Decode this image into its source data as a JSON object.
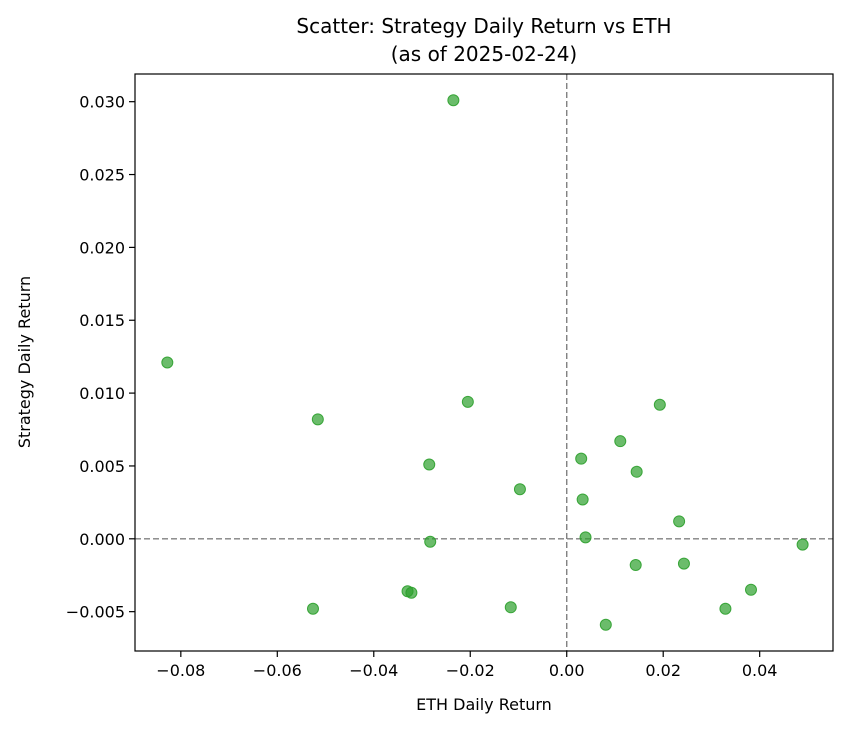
{
  "chart_data": {
    "type": "scatter",
    "title": "Scatter: Strategy Daily Return vs ETH",
    "subtitle": "(as of 2025-02-24)",
    "xlabel": "ETH Daily Return",
    "ylabel": "Strategy Daily Return",
    "xlim": [
      -0.0895,
      0.0552
    ],
    "ylim": [
      -0.0077,
      0.0319
    ],
    "xticks": [
      -0.08,
      -0.06,
      -0.04,
      -0.02,
      0.0,
      0.02,
      0.04
    ],
    "xtick_labels": [
      "−0.08",
      "−0.06",
      "−0.04",
      "−0.02",
      "0.00",
      "0.02",
      "0.04"
    ],
    "yticks": [
      -0.005,
      0.0,
      0.005,
      0.01,
      0.015,
      0.02,
      0.025,
      0.03
    ],
    "ytick_labels": [
      "−0.005",
      "0.000",
      "0.005",
      "0.010",
      "0.015",
      "0.020",
      "0.025",
      "0.030"
    ],
    "reference_lines": {
      "x": 0.0,
      "y": 0.0,
      "style": "dashed",
      "color": "#808080"
    },
    "grid": false,
    "point_color": "#2ca02c",
    "points": [
      {
        "x": -0.0828,
        "y": 0.0121
      },
      {
        "x": -0.0516,
        "y": 0.0082
      },
      {
        "x": -0.0526,
        "y": -0.0048
      },
      {
        "x": -0.033,
        "y": -0.0036
      },
      {
        "x": -0.0322,
        "y": -0.0037
      },
      {
        "x": -0.0285,
        "y": 0.0051
      },
      {
        "x": -0.0283,
        "y": -0.0002
      },
      {
        "x": -0.0235,
        "y": 0.0301
      },
      {
        "x": -0.0205,
        "y": 0.0094
      },
      {
        "x": -0.0116,
        "y": -0.0047
      },
      {
        "x": -0.0097,
        "y": 0.0034
      },
      {
        "x": 0.003,
        "y": 0.0055
      },
      {
        "x": 0.0033,
        "y": 0.0027
      },
      {
        "x": 0.0039,
        "y": 0.0001
      },
      {
        "x": 0.0081,
        "y": -0.0059
      },
      {
        "x": 0.0111,
        "y": 0.0067
      },
      {
        "x": 0.0143,
        "y": -0.0018
      },
      {
        "x": 0.0145,
        "y": 0.0046
      },
      {
        "x": 0.0193,
        "y": 0.0092
      },
      {
        "x": 0.0233,
        "y": 0.0012
      },
      {
        "x": 0.0243,
        "y": -0.0017
      },
      {
        "x": 0.0329,
        "y": -0.0048
      },
      {
        "x": 0.0382,
        "y": -0.0035
      },
      {
        "x": 0.0489,
        "y": -0.0004
      }
    ]
  }
}
